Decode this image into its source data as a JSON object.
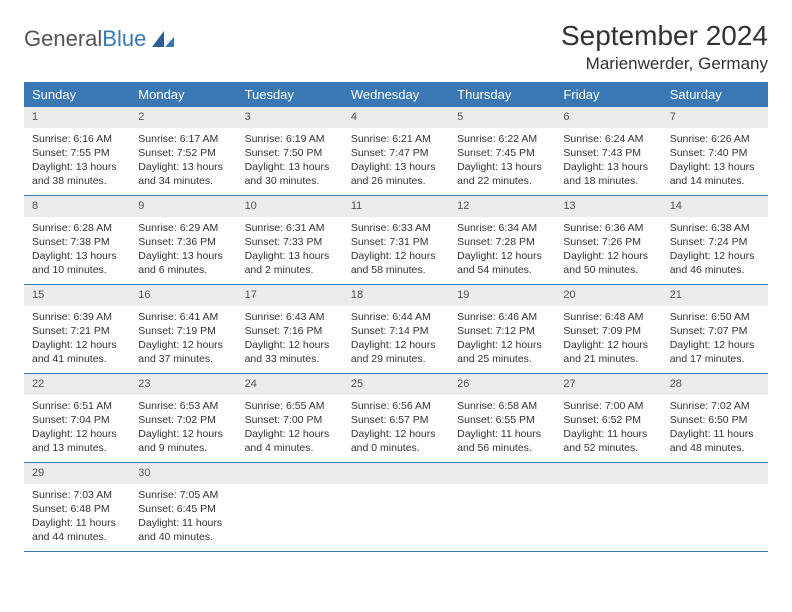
{
  "logo": {
    "text1": "General",
    "text2": "Blue"
  },
  "title": "September 2024",
  "location": "Marienwerder, Germany",
  "colors": {
    "header_bg": "#3a78b5",
    "header_fg": "#ffffff",
    "band_bg": "#ececec",
    "text": "#333333",
    "border": "#3a78b5"
  },
  "day_names": [
    "Sunday",
    "Monday",
    "Tuesday",
    "Wednesday",
    "Thursday",
    "Friday",
    "Saturday"
  ],
  "weeks": [
    [
      {
        "n": "1",
        "sr": "Sunrise: 6:16 AM",
        "ss": "Sunset: 7:55 PM",
        "d1": "Daylight: 13 hours",
        "d2": "and 38 minutes."
      },
      {
        "n": "2",
        "sr": "Sunrise: 6:17 AM",
        "ss": "Sunset: 7:52 PM",
        "d1": "Daylight: 13 hours",
        "d2": "and 34 minutes."
      },
      {
        "n": "3",
        "sr": "Sunrise: 6:19 AM",
        "ss": "Sunset: 7:50 PM",
        "d1": "Daylight: 13 hours",
        "d2": "and 30 minutes."
      },
      {
        "n": "4",
        "sr": "Sunrise: 6:21 AM",
        "ss": "Sunset: 7:47 PM",
        "d1": "Daylight: 13 hours",
        "d2": "and 26 minutes."
      },
      {
        "n": "5",
        "sr": "Sunrise: 6:22 AM",
        "ss": "Sunset: 7:45 PM",
        "d1": "Daylight: 13 hours",
        "d2": "and 22 minutes."
      },
      {
        "n": "6",
        "sr": "Sunrise: 6:24 AM",
        "ss": "Sunset: 7:43 PM",
        "d1": "Daylight: 13 hours",
        "d2": "and 18 minutes."
      },
      {
        "n": "7",
        "sr": "Sunrise: 6:26 AM",
        "ss": "Sunset: 7:40 PM",
        "d1": "Daylight: 13 hours",
        "d2": "and 14 minutes."
      }
    ],
    [
      {
        "n": "8",
        "sr": "Sunrise: 6:28 AM",
        "ss": "Sunset: 7:38 PM",
        "d1": "Daylight: 13 hours",
        "d2": "and 10 minutes."
      },
      {
        "n": "9",
        "sr": "Sunrise: 6:29 AM",
        "ss": "Sunset: 7:36 PM",
        "d1": "Daylight: 13 hours",
        "d2": "and 6 minutes."
      },
      {
        "n": "10",
        "sr": "Sunrise: 6:31 AM",
        "ss": "Sunset: 7:33 PM",
        "d1": "Daylight: 13 hours",
        "d2": "and 2 minutes."
      },
      {
        "n": "11",
        "sr": "Sunrise: 6:33 AM",
        "ss": "Sunset: 7:31 PM",
        "d1": "Daylight: 12 hours",
        "d2": "and 58 minutes."
      },
      {
        "n": "12",
        "sr": "Sunrise: 6:34 AM",
        "ss": "Sunset: 7:28 PM",
        "d1": "Daylight: 12 hours",
        "d2": "and 54 minutes."
      },
      {
        "n": "13",
        "sr": "Sunrise: 6:36 AM",
        "ss": "Sunset: 7:26 PM",
        "d1": "Daylight: 12 hours",
        "d2": "and 50 minutes."
      },
      {
        "n": "14",
        "sr": "Sunrise: 6:38 AM",
        "ss": "Sunset: 7:24 PM",
        "d1": "Daylight: 12 hours",
        "d2": "and 46 minutes."
      }
    ],
    [
      {
        "n": "15",
        "sr": "Sunrise: 6:39 AM",
        "ss": "Sunset: 7:21 PM",
        "d1": "Daylight: 12 hours",
        "d2": "and 41 minutes."
      },
      {
        "n": "16",
        "sr": "Sunrise: 6:41 AM",
        "ss": "Sunset: 7:19 PM",
        "d1": "Daylight: 12 hours",
        "d2": "and 37 minutes."
      },
      {
        "n": "17",
        "sr": "Sunrise: 6:43 AM",
        "ss": "Sunset: 7:16 PM",
        "d1": "Daylight: 12 hours",
        "d2": "and 33 minutes."
      },
      {
        "n": "18",
        "sr": "Sunrise: 6:44 AM",
        "ss": "Sunset: 7:14 PM",
        "d1": "Daylight: 12 hours",
        "d2": "and 29 minutes."
      },
      {
        "n": "19",
        "sr": "Sunrise: 6:46 AM",
        "ss": "Sunset: 7:12 PM",
        "d1": "Daylight: 12 hours",
        "d2": "and 25 minutes."
      },
      {
        "n": "20",
        "sr": "Sunrise: 6:48 AM",
        "ss": "Sunset: 7:09 PM",
        "d1": "Daylight: 12 hours",
        "d2": "and 21 minutes."
      },
      {
        "n": "21",
        "sr": "Sunrise: 6:50 AM",
        "ss": "Sunset: 7:07 PM",
        "d1": "Daylight: 12 hours",
        "d2": "and 17 minutes."
      }
    ],
    [
      {
        "n": "22",
        "sr": "Sunrise: 6:51 AM",
        "ss": "Sunset: 7:04 PM",
        "d1": "Daylight: 12 hours",
        "d2": "and 13 minutes."
      },
      {
        "n": "23",
        "sr": "Sunrise: 6:53 AM",
        "ss": "Sunset: 7:02 PM",
        "d1": "Daylight: 12 hours",
        "d2": "and 9 minutes."
      },
      {
        "n": "24",
        "sr": "Sunrise: 6:55 AM",
        "ss": "Sunset: 7:00 PM",
        "d1": "Daylight: 12 hours",
        "d2": "and 4 minutes."
      },
      {
        "n": "25",
        "sr": "Sunrise: 6:56 AM",
        "ss": "Sunset: 6:57 PM",
        "d1": "Daylight: 12 hours",
        "d2": "and 0 minutes."
      },
      {
        "n": "26",
        "sr": "Sunrise: 6:58 AM",
        "ss": "Sunset: 6:55 PM",
        "d1": "Daylight: 11 hours",
        "d2": "and 56 minutes."
      },
      {
        "n": "27",
        "sr": "Sunrise: 7:00 AM",
        "ss": "Sunset: 6:52 PM",
        "d1": "Daylight: 11 hours",
        "d2": "and 52 minutes."
      },
      {
        "n": "28",
        "sr": "Sunrise: 7:02 AM",
        "ss": "Sunset: 6:50 PM",
        "d1": "Daylight: 11 hours",
        "d2": "and 48 minutes."
      }
    ],
    [
      {
        "n": "29",
        "sr": "Sunrise: 7:03 AM",
        "ss": "Sunset: 6:48 PM",
        "d1": "Daylight: 11 hours",
        "d2": "and 44 minutes."
      },
      {
        "n": "30",
        "sr": "Sunrise: 7:05 AM",
        "ss": "Sunset: 6:45 PM",
        "d1": "Daylight: 11 hours",
        "d2": "and 40 minutes."
      },
      {
        "empty": true
      },
      {
        "empty": true
      },
      {
        "empty": true
      },
      {
        "empty": true
      },
      {
        "empty": true
      }
    ]
  ]
}
